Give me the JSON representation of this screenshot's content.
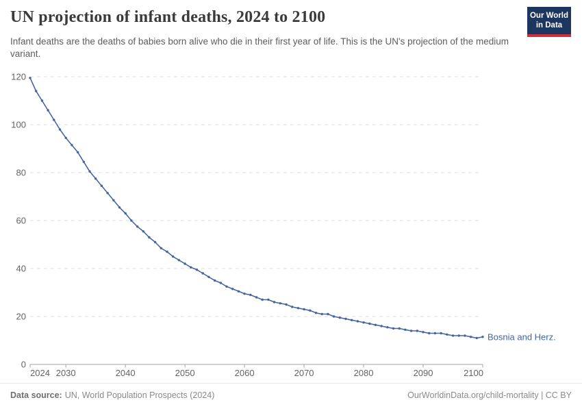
{
  "header": {
    "title": "UN projection of infant deaths, 2024 to 2100",
    "subtitle": "Infant deaths are the deaths of babies born alive who die in their first year of life. This is the UN's projection of the medium variant.",
    "logo": {
      "line1": "Our World",
      "line2": "in Data",
      "bg_color": "#1d3660",
      "accent_color": "#cf303e"
    }
  },
  "chart_data": {
    "type": "line",
    "title": "UN projection of infant deaths, 2024 to 2100",
    "xlabel": "",
    "ylabel": "",
    "xlim": [
      2024,
      2100
    ],
    "ylim": [
      0,
      120
    ],
    "xticks": [
      2024,
      2030,
      2040,
      2050,
      2060,
      2070,
      2080,
      2090,
      2100
    ],
    "yticks": [
      0,
      20,
      40,
      60,
      80,
      100,
      120
    ],
    "grid": "horizontal-dashed",
    "legend_position": "end-of-line-label",
    "line_color": "#44659e",
    "axis_color": "#a3a3a3",
    "grid_color": "#dcdcdc",
    "tick_label_color": "#636363",
    "series": [
      {
        "name": "Bosnia and Herz.",
        "x": [
          2024,
          2025,
          2026,
          2027,
          2028,
          2029,
          2030,
          2031,
          2032,
          2033,
          2034,
          2035,
          2036,
          2037,
          2038,
          2039,
          2040,
          2041,
          2042,
          2043,
          2044,
          2045,
          2046,
          2047,
          2048,
          2049,
          2050,
          2051,
          2052,
          2053,
          2054,
          2055,
          2056,
          2057,
          2058,
          2059,
          2060,
          2061,
          2062,
          2063,
          2064,
          2065,
          2066,
          2067,
          2068,
          2069,
          2070,
          2071,
          2072,
          2073,
          2074,
          2075,
          2076,
          2077,
          2078,
          2079,
          2080,
          2081,
          2082,
          2083,
          2084,
          2085,
          2086,
          2087,
          2088,
          2089,
          2090,
          2091,
          2092,
          2093,
          2094,
          2095,
          2096,
          2097,
          2098,
          2099,
          2100
        ],
        "values": [
          119.5,
          114,
          110,
          106,
          102,
          98,
          94.5,
          91.5,
          88.5,
          84.5,
          80.5,
          77.5,
          74.5,
          71.5,
          68.5,
          65.5,
          63,
          60,
          57.5,
          55.5,
          53,
          51,
          48.5,
          47,
          45,
          43.5,
          42,
          40.5,
          39.5,
          38,
          36.5,
          35,
          34,
          32.5,
          31.5,
          30.5,
          29.5,
          29,
          28,
          27,
          27,
          26,
          25.5,
          25,
          24,
          23.5,
          23,
          22.5,
          21.5,
          21,
          21,
          20,
          19.5,
          19,
          18.5,
          18,
          17.5,
          17,
          16.5,
          16,
          15.5,
          15,
          15,
          14.5,
          14,
          14,
          13.5,
          13,
          13,
          13,
          12.5,
          12,
          12,
          12,
          11.5,
          11,
          11.5
        ]
      }
    ]
  },
  "footer": {
    "source_label": "Data source:",
    "source_value": "UN, World Population Prospects (2024)",
    "attribution": "OurWorldinData.org/child-mortality | CC BY"
  }
}
